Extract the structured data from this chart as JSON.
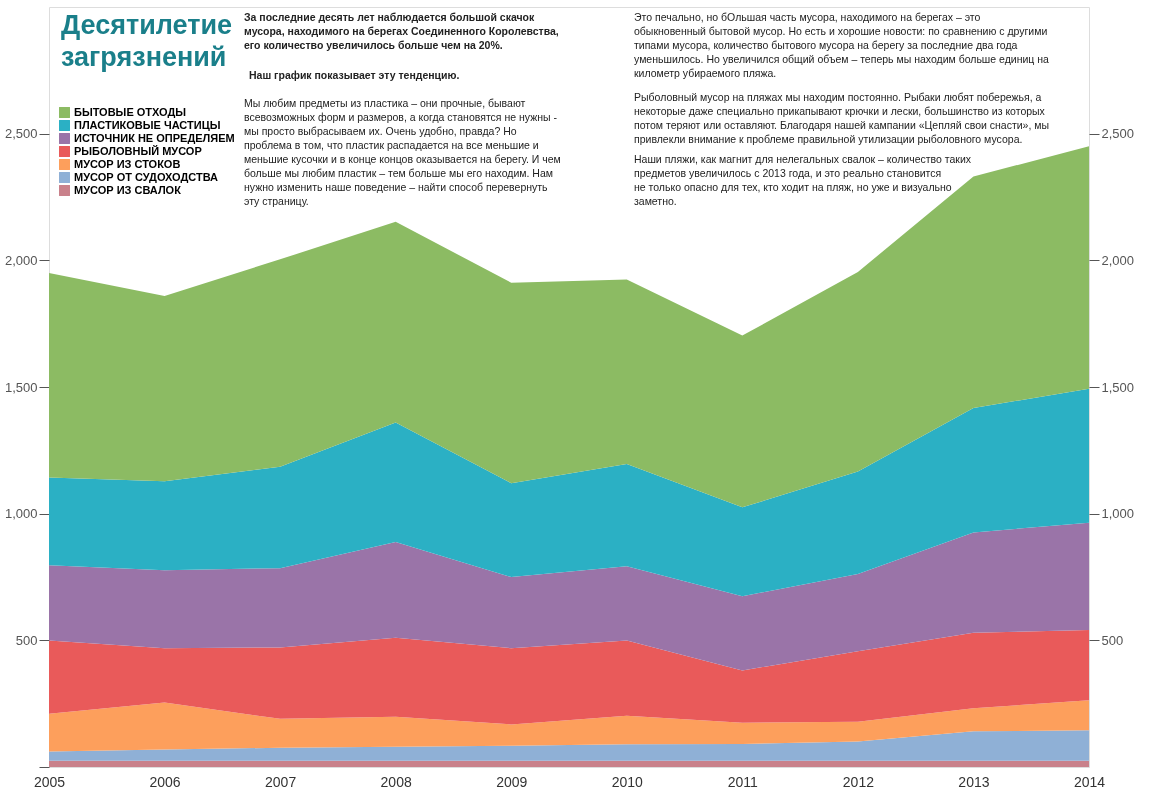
{
  "chart_data": {
    "type": "area",
    "stacked": true,
    "title": "Десятилетие загрязнений",
    "categories": [
      "2005",
      "2006",
      "2007",
      "2008",
      "2009",
      "2010",
      "2011",
      "2012",
      "2013",
      "2014"
    ],
    "series": [
      {
        "name": "МУСОР ИЗ СВАЛОК",
        "color": "#c9818b",
        "values": [
          25,
          25,
          25,
          25,
          25,
          25,
          25,
          25,
          25,
          25
        ]
      },
      {
        "name": "МУСОР ОТ СУДОХОДСТВА",
        "color": "#8fb0d6",
        "values": [
          36,
          44,
          51,
          55,
          59,
          65,
          66,
          76,
          116,
          120
        ]
      },
      {
        "name": "МУСОР ИЗ СТОКОВ",
        "color": "#fd9f5c",
        "values": [
          149,
          186,
          114,
          118,
          84,
          112,
          84,
          78,
          91,
          118
        ]
      },
      {
        "name": "РЫБОЛОВНЫЙ МУСОР",
        "color": "#e95a5a",
        "values": [
          289,
          214,
          282,
          312,
          301,
          297,
          206,
          278,
          298,
          278
        ]
      },
      {
        "name": "ИСТОЧНИК НЕ ОПРЕДЕЛЯЕМ",
        "color": "#9a74a8",
        "values": [
          297,
          308,
          313,
          378,
          281,
          293,
          293,
          305,
          396,
          423
        ]
      },
      {
        "name": "ПЛАСТИКОВЫЕ ЧАСТИЦЫ",
        "color": "#2bb0c4",
        "values": [
          347,
          351,
          400,
          472,
          370,
          404,
          351,
          404,
          491,
          529
        ]
      },
      {
        "name": "БЫТОВЫЕ ОТХОДЫ",
        "color": "#8cbb63",
        "values": [
          807,
          731,
          819,
          792,
          792,
          728,
          678,
          788,
          914,
          957
        ]
      }
    ],
    "ylim": [
      0,
      3000
    ],
    "yticks": [
      {
        "value": 0,
        "label": null
      },
      {
        "value": 500,
        "label": "500"
      },
      {
        "value": 1000,
        "label": "1,000"
      },
      {
        "value": 1500,
        "label": "1,500"
      },
      {
        "value": 2000,
        "label": "2,000"
      },
      {
        "value": 2500,
        "label": "2,500"
      }
    ],
    "y2lim": [
      0,
      3000
    ],
    "y2ticks": [
      {
        "value": 500,
        "label": "500"
      },
      {
        "value": 1000,
        "label": "1,000"
      },
      {
        "value": 1500,
        "label": "1,500"
      },
      {
        "value": 2000,
        "label": "2,000"
      },
      {
        "value": 2500,
        "label": "2,500"
      }
    ],
    "grid": false,
    "legend": "top left",
    "annotations": [
      "За последние десять лет наблюдается большой скачок\nмусора, находимого на берегах Соединенного Королевства,\nего количество увеличилось больше чем на 20%.",
      "Наш график показывает эту тенденцию.",
      "Мы любим предметы из пластика – они прочные, бывают\nвсевозможных форм и размеров, а когда становятся не нужны -\nмы просто выбрасываем их. Очень удобно, правда? Но\nпроблема в том, что пластик распадается на все меньшие и\nменьшие кусочки и в конце концов оказывается на берегу. И чем\nбольше мы любим пластик – тем больше мы его находим. Нам\nнужно изменить наше поведение – найти способ перевернуть\nэту страницу.",
      "Это печально, но бОльшая часть мусора, находимого на берегах – это\nобыкновенный бытовой мусор. Но есть и хорошие новости: по сравнению с другими\nтипами мусора, количество бытового мусора на берегу за последние два года\nуменьшилось. Но увеличился общий объем – теперь мы находим больше единиц на\nкилометр убираемого пляжа.",
      "Рыболовный мусор на пляжах мы находим постоянно. Рыбаки любят побережья, а\nнекоторые даже специально прикапывают крючки и лески, большинство из которых\nпотом теряют или оставляют. Благодаря нашей кампании «Цепляй свои снасти», мы\nпривлекли внимание к проблеме правильной утилизации рыболовного мусора.",
      "Наши пляжи, как магнит для нелегальных свалок – количество таких\nпредметов увеличилось с 2013 года, и это реально становится\nне только опасно для тех, кто ходит на пляж, но уже и визуально\nзаметно."
    ]
  }
}
